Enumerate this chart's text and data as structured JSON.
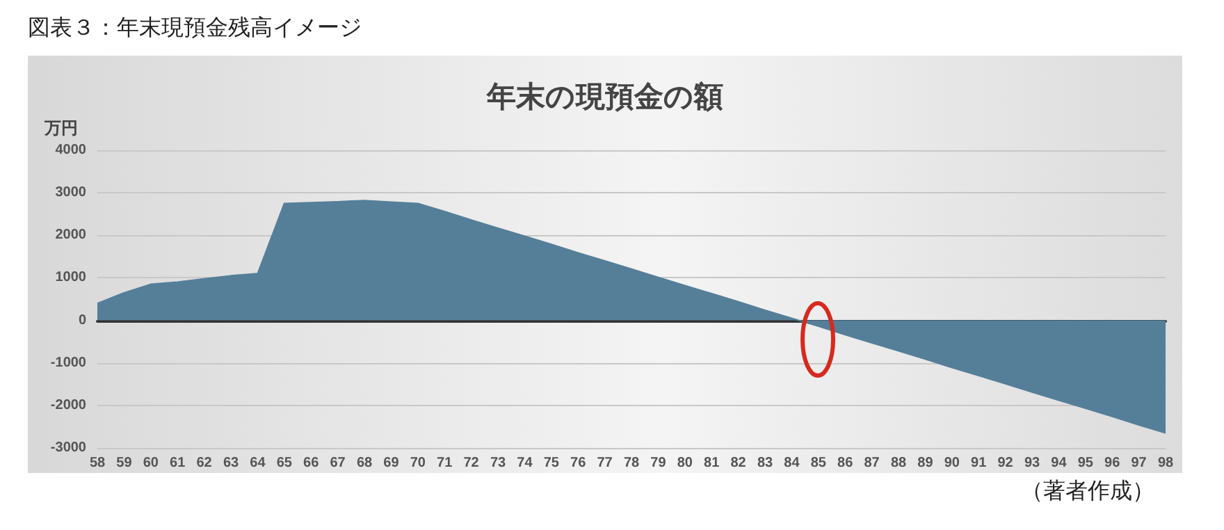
{
  "chart_data": {
    "type": "area",
    "title": "年末の現預金の額",
    "ylabel": "万円",
    "annotations": [
      "図表３：年末現預金残高イメージ",
      "（著者作成）"
    ],
    "categories": [
      "58",
      "59",
      "60",
      "61",
      "62",
      "63",
      "64",
      "65",
      "66",
      "67",
      "68",
      "69",
      "70",
      "71",
      "72",
      "73",
      "74",
      "75",
      "76",
      "77",
      "78",
      "79",
      "80",
      "81",
      "82",
      "83",
      "84",
      "85",
      "86",
      "87",
      "88",
      "89",
      "90",
      "91",
      "92",
      "93",
      "94",
      "95",
      "96",
      "97",
      "98"
    ],
    "series": [
      {
        "color": "#557f99",
        "values": [
          400,
          650,
          850,
          900,
          980,
          1050,
          1100,
          2750,
          2770,
          2790,
          2820,
          2780,
          2750,
          2560,
          2360,
          2170,
          1980,
          1790,
          1590,
          1400,
          1210,
          1010,
          820,
          630,
          440,
          240,
          50,
          -140,
          -340,
          -530,
          -720,
          -910,
          -1110,
          -1300,
          -1490,
          -1690,
          -1880,
          -2070,
          -2260,
          -2460,
          -2650
        ]
      }
    ],
    "ylim": [
      -3000,
      4000
    ],
    "yticks": [
      -3000,
      -2000,
      -1000,
      0,
      1000,
      2000,
      3000,
      4000
    ],
    "grid": "y"
  }
}
